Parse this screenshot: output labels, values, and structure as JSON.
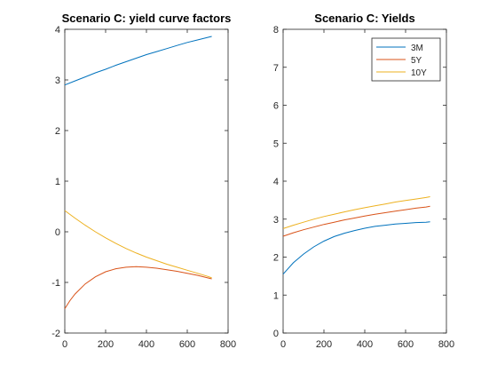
{
  "chart_data": [
    {
      "type": "line",
      "title": "Scenario C: yield curve factors",
      "xlabel": "",
      "ylabel": "",
      "xlim": [
        0,
        800
      ],
      "ylim": [
        -2,
        4
      ],
      "xticks": [
        0,
        200,
        400,
        600,
        800
      ],
      "yticks": [
        -2,
        -1,
        0,
        1,
        2,
        3,
        4
      ],
      "grid": false,
      "legend": null,
      "series": [
        {
          "color": "#0072BD",
          "x": [
            0,
            50,
            100,
            150,
            200,
            250,
            300,
            350,
            400,
            450,
            500,
            550,
            600,
            650,
            700,
            720
          ],
          "y": [
            2.9,
            2.98,
            3.06,
            3.14,
            3.21,
            3.29,
            3.36,
            3.43,
            3.5,
            3.56,
            3.62,
            3.68,
            3.74,
            3.79,
            3.84,
            3.86
          ]
        },
        {
          "color": "#D95319",
          "x": [
            0,
            25,
            50,
            100,
            150,
            200,
            250,
            300,
            350,
            400,
            450,
            500,
            550,
            600,
            650,
            700,
            720
          ],
          "y": [
            -1.52,
            -1.36,
            -1.23,
            -1.03,
            -0.89,
            -0.79,
            -0.73,
            -0.7,
            -0.69,
            -0.7,
            -0.72,
            -0.75,
            -0.78,
            -0.82,
            -0.86,
            -0.91,
            -0.93
          ]
        },
        {
          "color": "#EDB120",
          "x": [
            0,
            50,
            100,
            150,
            200,
            250,
            300,
            350,
            400,
            450,
            500,
            550,
            600,
            650,
            700,
            720
          ],
          "y": [
            0.42,
            0.27,
            0.13,
            0.0,
            -0.12,
            -0.23,
            -0.33,
            -0.42,
            -0.5,
            -0.57,
            -0.64,
            -0.7,
            -0.76,
            -0.82,
            -0.88,
            -0.91
          ]
        }
      ]
    },
    {
      "type": "line",
      "title": "Scenario C: Yields",
      "xlabel": "",
      "ylabel": "",
      "xlim": [
        0,
        800
      ],
      "ylim": [
        0,
        8
      ],
      "xticks": [
        0,
        200,
        400,
        600,
        800
      ],
      "yticks": [
        0,
        1,
        2,
        3,
        4,
        5,
        6,
        7,
        8
      ],
      "grid": false,
      "legend": "top-right",
      "series": [
        {
          "name": "3M",
          "color": "#0072BD",
          "x": [
            0,
            50,
            100,
            150,
            200,
            250,
            300,
            350,
            400,
            450,
            500,
            550,
            600,
            650,
            700,
            720
          ],
          "y": [
            1.55,
            1.85,
            2.08,
            2.27,
            2.42,
            2.54,
            2.63,
            2.7,
            2.76,
            2.81,
            2.84,
            2.87,
            2.89,
            2.91,
            2.92,
            2.93
          ]
        },
        {
          "name": "5Y",
          "color": "#D95319",
          "x": [
            0,
            50,
            100,
            150,
            200,
            250,
            300,
            350,
            400,
            450,
            500,
            550,
            600,
            650,
            700,
            720
          ],
          "y": [
            2.55,
            2.64,
            2.72,
            2.79,
            2.86,
            2.92,
            2.98,
            3.03,
            3.08,
            3.13,
            3.17,
            3.21,
            3.25,
            3.29,
            3.32,
            3.34
          ]
        },
        {
          "name": "10Y",
          "color": "#EDB120",
          "x": [
            0,
            50,
            100,
            150,
            200,
            250,
            300,
            350,
            400,
            450,
            500,
            550,
            600,
            650,
            700,
            720
          ],
          "y": [
            2.75,
            2.84,
            2.92,
            3.0,
            3.07,
            3.13,
            3.19,
            3.25,
            3.3,
            3.35,
            3.4,
            3.45,
            3.49,
            3.53,
            3.57,
            3.59
          ]
        }
      ]
    }
  ]
}
